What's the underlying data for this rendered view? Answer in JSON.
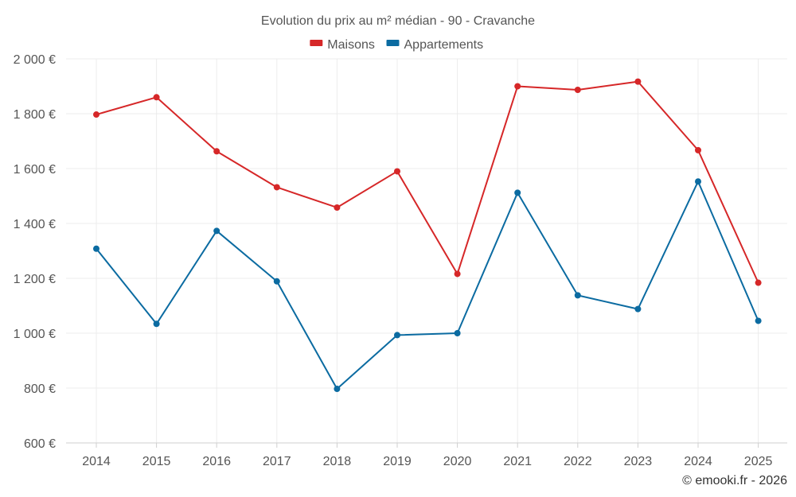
{
  "chart_data": {
    "type": "line",
    "title": "Evolution du prix au m² médian - 90 - Cravanche",
    "categories": [
      "2014",
      "2015",
      "2016",
      "2017",
      "2018",
      "2019",
      "2020",
      "2021",
      "2022",
      "2023",
      "2024",
      "2025"
    ],
    "series": [
      {
        "name": "Maisons",
        "color": "#d62728",
        "values": [
          1797,
          1860,
          1663,
          1532,
          1458,
          1590,
          1216,
          1900,
          1887,
          1917,
          1667,
          1184
        ]
      },
      {
        "name": "Appartements",
        "color": "#0b6ba1",
        "values": [
          1308,
          1034,
          1373,
          1189,
          797,
          993,
          1000,
          1512,
          1138,
          1088,
          1553,
          1045
        ]
      }
    ],
    "y_ticks": [
      "600 €",
      "800 €",
      "1 000 €",
      "1 200 €",
      "1 400 €",
      "1 600 €",
      "1 800 €",
      "2 000 €"
    ],
    "y_tick_values": [
      600,
      800,
      1000,
      1200,
      1400,
      1600,
      1800,
      2000
    ],
    "ylim": [
      600,
      2000
    ],
    "xlabel": "",
    "ylabel": "",
    "grid": true,
    "legend_position": "top-center"
  },
  "credit": "© emooki.fr - 2026"
}
